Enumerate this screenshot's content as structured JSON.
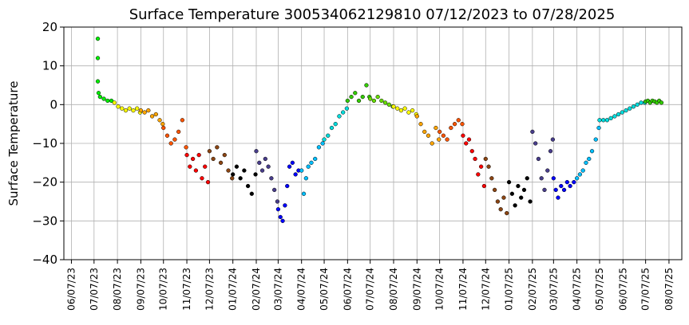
{
  "chart_data": {
    "type": "scatter",
    "title": "Surface Temperature 300534062129810  07/12/2023 to 07/28/2025",
    "xlabel": "",
    "ylabel": "Surface Temperature",
    "ylim": [
      -40,
      20
    ],
    "xlim": [
      "2023-05-28",
      "2025-08-24"
    ],
    "y_ticks": [
      -40,
      -30,
      -20,
      -10,
      0,
      10,
      20
    ],
    "y_tick_labels": [
      "−40",
      "−30",
      "−20",
      "−10",
      "0",
      "10",
      "20"
    ],
    "x_ticks": [
      "2023-06-07",
      "2023-07-07",
      "2023-08-07",
      "2023-09-07",
      "2023-10-07",
      "2023-11-07",
      "2023-12-07",
      "2024-01-07",
      "2024-02-07",
      "2024-03-07",
      "2024-04-07",
      "2024-05-07",
      "2024-06-07",
      "2024-07-07",
      "2024-08-07",
      "2024-09-07",
      "2024-10-07",
      "2024-11-07",
      "2024-12-07",
      "2025-01-07",
      "2025-02-07",
      "2025-03-07",
      "2025-04-07",
      "2025-05-07",
      "2025-06-07",
      "2025-07-07",
      "2025-08-07"
    ],
    "x_tick_labels": [
      "06/07/23",
      "07/07/23",
      "08/07/23",
      "09/07/23",
      "10/07/23",
      "11/07/23",
      "12/07/23",
      "01/07/24",
      "02/07/24",
      "03/07/24",
      "04/07/24",
      "05/07/24",
      "06/07/24",
      "07/07/24",
      "08/07/24",
      "09/07/24",
      "10/07/24",
      "11/07/24",
      "12/07/24",
      "01/07/25",
      "02/07/25",
      "03/07/25",
      "04/07/25",
      "05/07/25",
      "06/07/25",
      "07/07/25",
      "08/07/25"
    ],
    "grid": true,
    "marker_edge_color": "#000000",
    "color_by": "month",
    "series": [
      {
        "color": "#00ee00",
        "x": [
          "2023-07-12",
          "2023-07-12",
          "2023-07-12",
          "2023-07-13",
          "2023-07-15",
          "2023-07-20",
          "2023-07-25",
          "2023-07-30"
        ],
        "y": [
          17,
          12,
          6,
          3,
          2,
          1.5,
          1,
          1
        ]
      },
      {
        "color": "#ffff00",
        "x": [
          "2023-08-03",
          "2023-08-08",
          "2023-08-13",
          "2023-08-18",
          "2023-08-23",
          "2023-08-28",
          "2023-09-02",
          "2023-09-06"
        ],
        "y": [
          0.5,
          -0.5,
          -1,
          -1.5,
          -1,
          -1.5,
          -1,
          -2
        ]
      },
      {
        "color": "#ffa500",
        "x": [
          "2023-09-07",
          "2023-09-12",
          "2023-09-17",
          "2023-09-22",
          "2023-09-27",
          "2023-10-02",
          "2023-10-06"
        ],
        "y": [
          -1.5,
          -2,
          -1.5,
          -3,
          -2.5,
          -4,
          -5
        ]
      },
      {
        "color": "#ff5500",
        "x": [
          "2023-10-07",
          "2023-10-12",
          "2023-10-17",
          "2023-10-22",
          "2023-10-27",
          "2023-11-01",
          "2023-11-06"
        ],
        "y": [
          -6,
          -8,
          -10,
          -9,
          -7,
          -4,
          -11
        ]
      },
      {
        "color": "#ff0000",
        "x": [
          "2023-11-07",
          "2023-11-11",
          "2023-11-15",
          "2023-11-19",
          "2023-11-23",
          "2023-11-27",
          "2023-12-01",
          "2023-12-05"
        ],
        "y": [
          -13,
          -16,
          -14,
          -17,
          -13,
          -19,
          -16,
          -20
        ]
      },
      {
        "color": "#8b4513",
        "x": [
          "2023-12-07",
          "2023-12-12",
          "2023-12-17",
          "2023-12-22",
          "2023-12-27",
          "2024-01-01",
          "2024-01-06"
        ],
        "y": [
          -12,
          -14,
          -11,
          -15,
          -13,
          -17,
          -19
        ]
      },
      {
        "color": "#000000",
        "x": [
          "2024-01-07",
          "2024-01-12",
          "2024-01-17",
          "2024-01-22",
          "2024-01-27",
          "2024-02-01",
          "2024-02-06"
        ],
        "y": [
          -18,
          -16,
          -19,
          -17,
          -21,
          -23,
          -18
        ]
      },
      {
        "color": "#483d8b",
        "x": [
          "2024-02-07",
          "2024-02-11",
          "2024-02-15",
          "2024-02-19",
          "2024-02-23",
          "2024-02-27",
          "2024-03-02",
          "2024-03-06"
        ],
        "y": [
          -12,
          -15,
          -17,
          -14,
          -16,
          -19,
          -22,
          -25
        ]
      },
      {
        "color": "#0000ff",
        "x": [
          "2024-03-07",
          "2024-03-10",
          "2024-03-13",
          "2024-03-16",
          "2024-03-19",
          "2024-03-22",
          "2024-03-26",
          "2024-03-30",
          "2024-04-03"
        ],
        "y": [
          -27,
          -29,
          -30,
          -26,
          -21,
          -16,
          -15,
          -18,
          -17
        ]
      },
      {
        "color": "#00bfff",
        "x": [
          "2024-04-07",
          "2024-04-10",
          "2024-04-13",
          "2024-04-16",
          "2024-04-20",
          "2024-04-25",
          "2024-04-30",
          "2024-05-05"
        ],
        "y": [
          -17,
          -23,
          -19,
          -16,
          -15,
          -14,
          -11,
          -10
        ]
      },
      {
        "color": "#00dddd",
        "x": [
          "2024-05-07",
          "2024-05-12",
          "2024-05-17",
          "2024-05-22",
          "2024-05-27",
          "2024-06-01",
          "2024-06-06"
        ],
        "y": [
          -9,
          -8,
          -6,
          -5,
          -3,
          -2,
          -1
        ]
      },
      {
        "color": "#33cc00",
        "x": [
          "2024-06-07",
          "2024-06-12",
          "2024-06-17",
          "2024-06-22",
          "2024-06-27",
          "2024-07-02",
          "2024-07-06"
        ],
        "y": [
          1,
          2,
          3,
          1,
          2,
          5,
          2
        ]
      },
      {
        "color": "#66dd00",
        "x": [
          "2024-07-07",
          "2024-07-12",
          "2024-07-17",
          "2024-07-22",
          "2024-07-27",
          "2024-08-01",
          "2024-08-06"
        ],
        "y": [
          1.5,
          1,
          2,
          1,
          0.5,
          0,
          -0.5
        ]
      },
      {
        "color": "#ffff00",
        "x": [
          "2024-08-07",
          "2024-08-12",
          "2024-08-17",
          "2024-08-22",
          "2024-08-27",
          "2024-09-01",
          "2024-09-06"
        ],
        "y": [
          -0.5,
          -1,
          -1.5,
          -1,
          -2,
          -1.5,
          -2.5
        ]
      },
      {
        "color": "#ffa500",
        "x": [
          "2024-09-07",
          "2024-09-12",
          "2024-09-17",
          "2024-09-22",
          "2024-09-27",
          "2024-10-02",
          "2024-10-06"
        ],
        "y": [
          -3,
          -5,
          -7,
          -8,
          -10,
          -6,
          -9
        ]
      },
      {
        "color": "#ff5500",
        "x": [
          "2024-10-07",
          "2024-10-12",
          "2024-10-17",
          "2024-10-22",
          "2024-10-27",
          "2024-11-01",
          "2024-11-06"
        ],
        "y": [
          -7,
          -8,
          -9,
          -6,
          -5,
          -4,
          -5
        ]
      },
      {
        "color": "#ff0000",
        "x": [
          "2024-11-07",
          "2024-11-11",
          "2024-11-15",
          "2024-11-19",
          "2024-11-23",
          "2024-11-27",
          "2024-12-01",
          "2024-12-05"
        ],
        "y": [
          -8,
          -10,
          -9,
          -12,
          -14,
          -18,
          -16,
          -21
        ]
      },
      {
        "color": "#8b4513",
        "x": [
          "2024-12-07",
          "2024-12-11",
          "2024-12-15",
          "2024-12-19",
          "2024-12-23",
          "2024-12-27",
          "2024-12-31",
          "2025-01-04"
        ],
        "y": [
          -14,
          -16,
          -19,
          -22,
          -25,
          -27,
          -24,
          -28
        ]
      },
      {
        "color": "#000000",
        "x": [
          "2025-01-07",
          "2025-01-11",
          "2025-01-15",
          "2025-01-19",
          "2025-01-23",
          "2025-01-27",
          "2025-01-31",
          "2025-02-04"
        ],
        "y": [
          -20,
          -23,
          -26,
          -21,
          -24,
          -22,
          -19,
          -25
        ]
      },
      {
        "color": "#483d8b",
        "x": [
          "2025-02-07",
          "2025-02-11",
          "2025-02-15",
          "2025-02-19",
          "2025-02-23",
          "2025-02-27",
          "2025-03-03",
          "2025-03-06"
        ],
        "y": [
          -7,
          -10,
          -14,
          -19,
          -22,
          -17,
          -12,
          -9
        ]
      },
      {
        "color": "#0000ff",
        "x": [
          "2025-03-07",
          "2025-03-10",
          "2025-03-13",
          "2025-03-17",
          "2025-03-21",
          "2025-03-25",
          "2025-03-29",
          "2025-04-03"
        ],
        "y": [
          -19,
          -22,
          -24,
          -21,
          -22,
          -20,
          -21,
          -20
        ]
      },
      {
        "color": "#00bfff",
        "x": [
          "2025-04-07",
          "2025-04-11",
          "2025-04-15",
          "2025-04-19",
          "2025-04-23",
          "2025-04-27",
          "2025-05-02",
          "2025-05-06"
        ],
        "y": [
          -19,
          -18,
          -17,
          -15,
          -14,
          -12,
          -9,
          -6
        ]
      },
      {
        "color": "#00dddd",
        "x": [
          "2025-05-07",
          "2025-05-12",
          "2025-05-17",
          "2025-05-22",
          "2025-05-27",
          "2025-06-01",
          "2025-06-06",
          "2025-06-11",
          "2025-06-16",
          "2025-06-21",
          "2025-06-26",
          "2025-07-01",
          "2025-07-06"
        ],
        "y": [
          -4,
          -4,
          -4,
          -3.5,
          -3,
          -2.5,
          -2,
          -1.5,
          -1,
          -0.5,
          0,
          0.5,
          0.5
        ]
      },
      {
        "color": "#33cc00",
        "x": [
          "2025-07-07",
          "2025-07-10",
          "2025-07-13",
          "2025-07-16",
          "2025-07-19",
          "2025-07-22",
          "2025-07-25",
          "2025-07-28"
        ],
        "y": [
          0.8,
          1,
          0.5,
          1,
          0.8,
          0.5,
          1,
          0.5
        ]
      }
    ]
  }
}
